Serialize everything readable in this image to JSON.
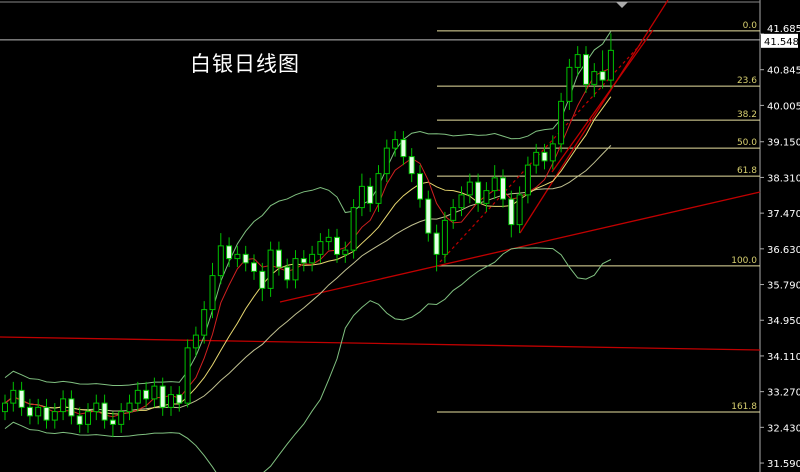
{
  "chart_data": {
    "type": "candlestick",
    "title": "白银日线图",
    "ylim": [
      31.45,
      42.5
    ],
    "y_ticks": [
      "41.685",
      "40.845",
      "40.005",
      "39.150",
      "38.310",
      "37.470",
      "36.630",
      "35.790",
      "34.950",
      "34.110",
      "33.270",
      "32.430",
      "31.590"
    ],
    "current_price": "41.548",
    "open": [
      32.8,
      33.0,
      33.3,
      32.9,
      32.7,
      32.9,
      32.6,
      32.8,
      33.1,
      32.7,
      32.5,
      32.8,
      33.0,
      32.6,
      32.5,
      32.8,
      33.0,
      33.3,
      33.1,
      33.4,
      32.9,
      33.2,
      33.0,
      34.3,
      34.6,
      35.2,
      36.0,
      36.7,
      36.4,
      36.5,
      36.3,
      36.1,
      35.7,
      36.6,
      36.2,
      35.9,
      36.4,
      36.3,
      36.5,
      36.8,
      36.9,
      36.5,
      36.6,
      37.6,
      38.1,
      37.7,
      38.4,
      39.0,
      39.2,
      38.8,
      38.4,
      37.8,
      37.0,
      36.5,
      37.3,
      37.6,
      37.9,
      38.2,
      37.7,
      38.0,
      38.3,
      37.8,
      37.2,
      37.9,
      38.6,
      38.9,
      38.7,
      39.1,
      40.1,
      40.9,
      41.2,
      40.5,
      40.8,
      40.6
    ],
    "high": [
      33.2,
      33.5,
      33.5,
      33.1,
      33.1,
      33.1,
      33.0,
      33.3,
      33.3,
      32.9,
      33.0,
      33.2,
      33.2,
      32.8,
      33.0,
      33.2,
      33.5,
      33.5,
      33.6,
      33.6,
      33.4,
      33.4,
      34.5,
      34.8,
      35.4,
      36.3,
      37.0,
      36.9,
      36.7,
      36.7,
      36.5,
      36.3,
      36.8,
      36.8,
      36.4,
      36.6,
      36.6,
      36.7,
      37.0,
      37.1,
      37.1,
      36.8,
      37.8,
      38.4,
      38.3,
      38.6,
      39.2,
      39.4,
      39.4,
      39.0,
      38.6,
      38.0,
      37.2,
      37.5,
      37.8,
      38.1,
      38.4,
      38.4,
      38.2,
      38.6,
      38.5,
      38.0,
      38.1,
      38.8,
      39.1,
      39.1,
      39.3,
      40.3,
      41.1,
      41.4,
      41.4,
      41.0,
      41.3,
      41.7
    ],
    "low": [
      32.6,
      32.8,
      32.7,
      32.5,
      32.5,
      32.4,
      32.4,
      32.6,
      32.5,
      32.3,
      32.3,
      32.6,
      32.4,
      32.2,
      32.3,
      32.6,
      32.8,
      32.9,
      32.9,
      32.7,
      32.7,
      32.8,
      32.9,
      34.1,
      34.4,
      35.0,
      35.8,
      36.2,
      36.2,
      36.1,
      35.9,
      35.4,
      35.5,
      36.0,
      35.7,
      35.7,
      36.1,
      36.1,
      36.3,
      36.6,
      36.3,
      36.3,
      36.4,
      37.4,
      37.5,
      37.5,
      38.2,
      38.8,
      38.6,
      38.2,
      37.6,
      36.8,
      36.1,
      36.3,
      37.1,
      37.4,
      37.7,
      37.5,
      37.5,
      37.8,
      37.6,
      36.9,
      37.0,
      37.7,
      38.4,
      38.5,
      38.5,
      38.9,
      39.9,
      40.7,
      40.3,
      40.2,
      40.4,
      40.4
    ],
    "close": [
      33.0,
      33.3,
      32.9,
      32.7,
      32.9,
      32.6,
      32.8,
      33.1,
      32.7,
      32.5,
      32.8,
      33.0,
      32.6,
      32.5,
      32.8,
      33.0,
      33.3,
      33.1,
      33.4,
      32.9,
      33.2,
      33.0,
      34.3,
      34.6,
      35.2,
      36.0,
      36.7,
      36.4,
      36.5,
      36.3,
      36.1,
      35.7,
      36.6,
      36.2,
      35.9,
      36.4,
      36.3,
      36.5,
      36.8,
      36.9,
      36.5,
      36.6,
      37.6,
      38.1,
      37.7,
      38.4,
      39.0,
      39.2,
      38.8,
      38.4,
      37.8,
      37.0,
      36.5,
      37.3,
      37.6,
      37.9,
      38.2,
      37.7,
      38.0,
      38.3,
      37.8,
      37.2,
      37.9,
      38.6,
      38.9,
      38.7,
      39.1,
      40.1,
      40.9,
      41.2,
      40.5,
      40.8,
      40.6,
      41.3
    ],
    "fibonacci": [
      {
        "label": "0.0",
        "price": 41.76
      },
      {
        "label": "23.6",
        "price": 40.46
      },
      {
        "label": "38.2",
        "price": 39.66
      },
      {
        "label": "50.0",
        "price": 39.0
      },
      {
        "label": "61.8",
        "price": 38.34
      },
      {
        "label": "100.0",
        "price": 36.23
      },
      {
        "label": "161.8",
        "price": 32.79
      }
    ],
    "indicators": [
      "bollinger-bands",
      "moving-average"
    ],
    "colors": {
      "background": "#000000",
      "candle": "#00c000",
      "candle_down_fill": "#e6ffe6",
      "fib": "#e8e0a0",
      "trendline": "#c00000",
      "axis_text": "#ffffff",
      "ma_fast": "#d02020",
      "ma_slow": "#e8d870",
      "bands": "#80c080"
    }
  }
}
